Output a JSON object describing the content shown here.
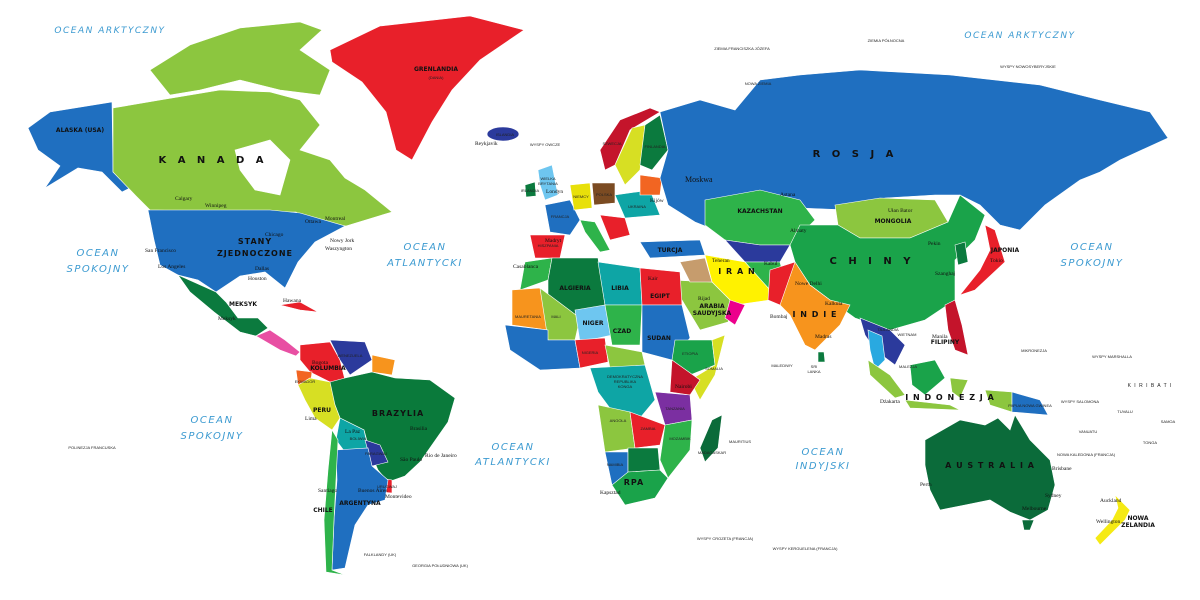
{
  "map": {
    "language": "pl",
    "colors": {
      "water": "#ffffff",
      "ocean_label": "#3d9bd1",
      "usa": "#1f6fc0",
      "canada": "#8cc63f",
      "greenland": "#e8202a",
      "russia": "#1f6fc0",
      "mexico": "#0b7a3e",
      "brazil": "#0a7a3b",
      "australia": "#0b6b3a",
      "china": "#1aa34a",
      "india": "#f7941d",
      "iran": "#fff200",
      "nz": "#f5ea14"
    },
    "oceans": {
      "arctic_w": "OCEAN ARKTYCZNY",
      "arctic_e": "OCEAN ARKTYCZNY",
      "ocean": "OCEAN",
      "spokojny": "SPOKOJNY",
      "atlantycki": "ATLANTYCKI",
      "indyjski": "INDYJSKI"
    },
    "countries": {
      "kanada": "K A N A D A",
      "usa_1": "STANY",
      "usa_2": "ZJEDNOCZONE",
      "alaska": "ALASKA (USA)",
      "grenlandia": "GRENLANDIA",
      "dania": "(DANIA)",
      "islandia": "ISLANDIA",
      "meksyk": "MEKSYK",
      "brazylia": "BRAZYLIA",
      "peru": "PERU",
      "kolumbia": "KOLUMBIA",
      "wenezuela": "WENEZUELA",
      "ekwador": "EKWADOR",
      "boliwia": "BOLIWIA",
      "paragwaj": "PARAGWAJ",
      "urugwaj": "URUGWAJ",
      "argentyna": "ARGENTYNA",
      "chile": "CHILE",
      "rosja": "R O S J A",
      "kazachstan": "KAZACHSTAN",
      "mongolia": "MONGOLIA",
      "chiny": "C H I N Y",
      "indie": "I N D I E",
      "iran": "I R A N",
      "turcja": "TURCJA",
      "arabia_1": "ARABIA",
      "arabia_2": "SAUDYJSKA",
      "szwecja": "SZWECJA",
      "finlandia": "FINLANDIA",
      "polska": "POLSKA",
      "ukraina": "UKRAINA",
      "francja": "FRANCJA",
      "niemcy": "NIEMCY",
      "wielka_1": "WIELKA",
      "wielka_2": "BRYTANIA",
      "hiszpania": "HISZPANIA",
      "irlandia": "IRLANDIA",
      "algieria": "ALGIERIA",
      "libia": "LIBIA",
      "egipt": "EGIPT",
      "mauretania": "MAURETANIA",
      "mali": "MALI",
      "niger": "NIGER",
      "czad": "CZAD",
      "sudan": "SUDAN",
      "etiopia": "ETIOPIA",
      "nigeria": "NIGERIA",
      "somalia": "SOMALIA",
      "drk_1": "DEMOKRATYCZNA",
      "drk_2": "REPUBLIKA",
      "drk_3": "KONGA",
      "angola": "ANGOLA",
      "zambia": "ZAMBIA",
      "tanzania": "TANZANIA",
      "namibia": "NAMIBIA",
      "mozambik": "MOZAMBIK",
      "rpa": "RPA",
      "madagaskar": "MADAGASKAR",
      "australia": "A U S T R A L I A",
      "indonezja": "I N D O N E Z J A",
      "filipiny": "FILIPINY",
      "japonia": "JAPONIA",
      "nz_1": "NOWA",
      "nz_2": "ZELANDIA",
      "tajlandia": "TAJLANDIA",
      "wietnam": "WIETNAM",
      "malezja": "MALEZJA",
      "sri_1": "SRI",
      "sri_2": "LANKA",
      "papua": "PAPUA NOWA GWINEA",
      "kiribati": "K I R I B A T I"
    },
    "islands": {
      "ziemia_fj": "ZIEMIA FRANCISZKA JÓZEFA",
      "nowa_ziemia": "NOWA ZIEMIA",
      "ziemia_pn": "ZIEMIA PÓŁNOCNA",
      "nowosyb": "WYSPY NOWOSYBERYJSKIE",
      "owcze": "WYSPY OWCZE",
      "polinezja": "POLINEZJA FRANCUSKA",
      "mikronezja": "MIKRONEZJA",
      "marshall": "WYSPY MARSHALLA",
      "tuvalu": "TUVALU",
      "tonga": "TONGA",
      "samoa": "SAMOA",
      "mauritius": "MAURITIUS",
      "falklandy": "FALKLANDY (UK)",
      "georgia": "GEORGIA POŁUDNIOWA (UK)",
      "malediwy": "MALEDIWY",
      "kerguelen": "WYSPY KERGUELENA (FRANCJA)",
      "crozeta": "WYSPY CROZETA (FRANCJA)",
      "kaledonia": "NOWA KALEDONIA (FRANCJA)",
      "salomona": "WYSPY SALOMONA",
      "vanuatu": "VANUATU"
    },
    "cities": {
      "moskwa": "Moskwa",
      "nowy_jork": "Nowy Jork",
      "waszyngton": "Waszyngton",
      "chicago": "Chicago",
      "los_angeles": "Los Angeles",
      "san_francisco": "San Francisco",
      "dallas": "Dallas",
      "houston": "Houston",
      "ottawa": "Ottawa",
      "montreal": "Montreal",
      "calgary": "Calgary",
      "winnipeg": "Winnipeg",
      "hawana": "Hawana",
      "meksyk": "Meksyk",
      "bogota": "Bogota",
      "lima": "Lima",
      "la_paz": "La Paz",
      "brasilia": "Brasilia",
      "rio": "Rio de Janeiro",
      "sao_paulo": "São Paulo",
      "buenos_aires": "Buenos Aires",
      "santiago": "Santiago",
      "montevideo": "Montevideo",
      "astana": "Astana",
      "almaty": "Almaty",
      "ulan_bator": "Ułan Bator",
      "pekin": "Pekin",
      "szanghaj": "Szanghaj",
      "tokio": "Tokio",
      "nowe_delhi": "Nowe Delhi",
      "bombaj": "Bombaj",
      "kalkuta": "Kalkuta",
      "madras": "Madras",
      "teheran": "Teheran",
      "rijad": "Rijad",
      "kabul": "Kabul",
      "manila": "Manila",
      "dzakarta": "Dżakarta",
      "perth": "Perth",
      "sydney": "Sydney",
      "brisbane": "Brisbane",
      "melbourne": "Melbourne",
      "auckland": "Auckland",
      "wellington": "Wellington",
      "kapsztad": "Kapsztad",
      "kijow": "Kijów",
      "madryt": "Madryt",
      "londyn": "Londyn",
      "casablanca": "Casablanca",
      "reykjavik": "Reykjavik",
      "kair": "Kair",
      "nairobi": "Nairobi"
    }
  }
}
